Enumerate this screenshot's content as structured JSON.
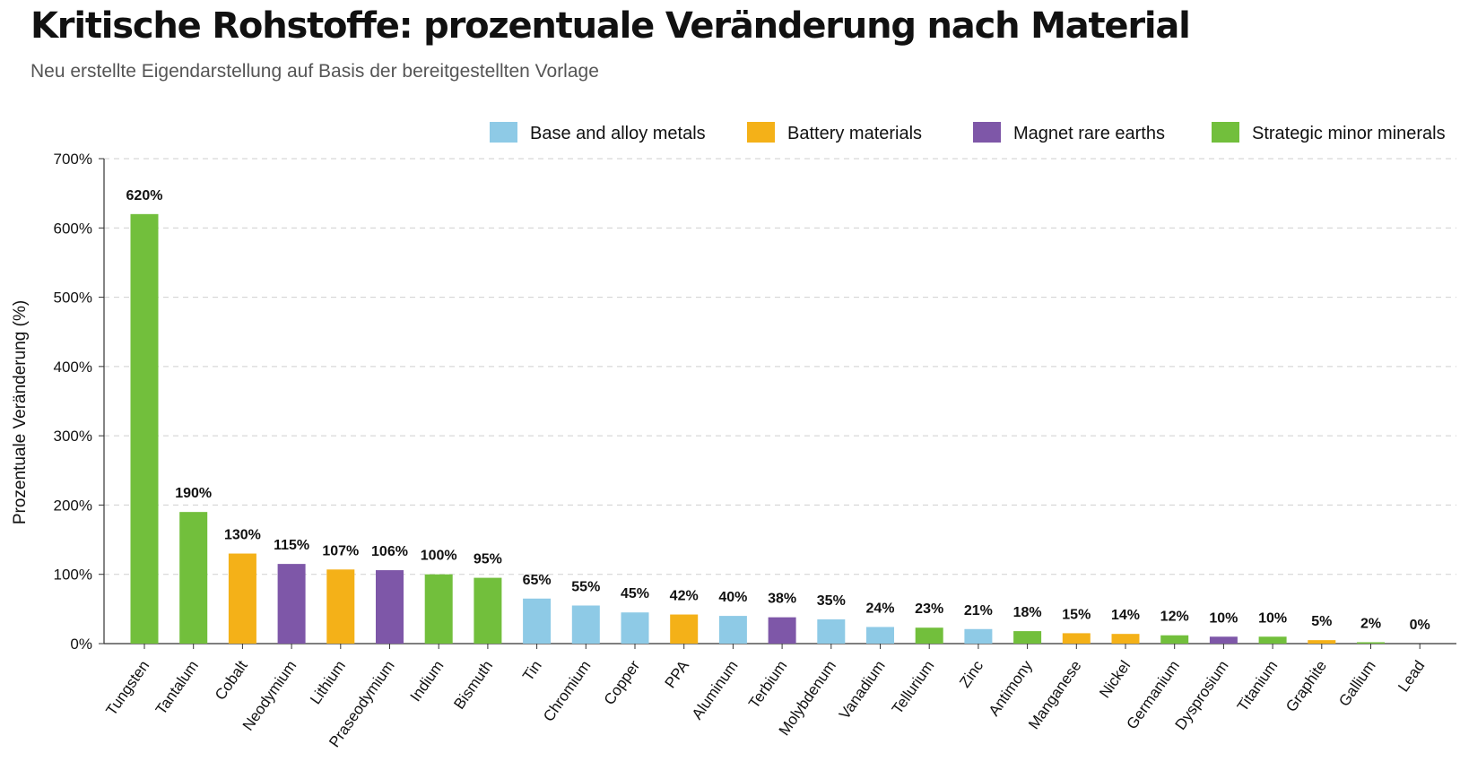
{
  "header": {
    "title": "Kritische Rohstoffe: prozentuale Veränderung nach Material",
    "subtitle": "Neu erstellte Eigendarstellung auf Basis der bereitgestellten Vorlage"
  },
  "chart_data": {
    "type": "bar",
    "title": "Kritische Rohstoffe: prozentuale Veränderung nach Material",
    "subtitle": "Neu erstellte Eigendarstellung auf Basis der bereitgestellten Vorlage",
    "xlabel": "",
    "ylabel": "Prozentuale Veränderung (%)",
    "ylim": [
      0,
      700
    ],
    "yticks": [
      0,
      100,
      200,
      300,
      400,
      500,
      600,
      700
    ],
    "ytick_labels": [
      "0%",
      "100%",
      "200%",
      "300%",
      "400%",
      "500%",
      "600%",
      "700%"
    ],
    "grid": "horizontal dashed",
    "legend_position": "top-right",
    "groups": [
      {
        "name": "Base and alloy metals",
        "color": "#8ecae6"
      },
      {
        "name": "Battery materials",
        "color": "#f4b118"
      },
      {
        "name": "Magnet rare earths",
        "color": "#7e57a8"
      },
      {
        "name": "Strategic minor minerals",
        "color": "#72bf3c"
      }
    ],
    "bars": [
      {
        "category": "Tungsten",
        "value": 620,
        "label": "620%",
        "group": 3
      },
      {
        "category": "Tantalum",
        "value": 190,
        "label": "190%",
        "group": 3
      },
      {
        "category": "Cobalt",
        "value": 130,
        "label": "130%",
        "group": 1
      },
      {
        "category": "Neodymium",
        "value": 115,
        "label": "115%",
        "group": 2
      },
      {
        "category": "Lithium",
        "value": 107,
        "label": "107%",
        "group": 1
      },
      {
        "category": "Praseodymium",
        "value": 106,
        "label": "106%",
        "group": 2
      },
      {
        "category": "Indium",
        "value": 100,
        "label": "100%",
        "group": 3
      },
      {
        "category": "Bismuth",
        "value": 95,
        "label": "95%",
        "group": 3
      },
      {
        "category": "Tin",
        "value": 65,
        "label": "65%",
        "group": 0
      },
      {
        "category": "Chromium",
        "value": 55,
        "label": "55%",
        "group": 0
      },
      {
        "category": "Copper",
        "value": 45,
        "label": "45%",
        "group": 0
      },
      {
        "category": "PPA",
        "value": 42,
        "label": "42%",
        "group": 1
      },
      {
        "category": "Aluminum",
        "value": 40,
        "label": "40%",
        "group": 0
      },
      {
        "category": "Terbium",
        "value": 38,
        "label": "38%",
        "group": 2
      },
      {
        "category": "Molybdenum",
        "value": 35,
        "label": "35%",
        "group": 0
      },
      {
        "category": "Vanadium",
        "value": 24,
        "label": "24%",
        "group": 0
      },
      {
        "category": "Tellurium",
        "value": 23,
        "label": "23%",
        "group": 3
      },
      {
        "category": "Zinc",
        "value": 21,
        "label": "21%",
        "group": 0
      },
      {
        "category": "Antimony",
        "value": 18,
        "label": "18%",
        "group": 3
      },
      {
        "category": "Manganese",
        "value": 15,
        "label": "15%",
        "group": 1
      },
      {
        "category": "Nickel",
        "value": 14,
        "label": "14%",
        "group": 1
      },
      {
        "category": "Germanium",
        "value": 12,
        "label": "12%",
        "group": 3
      },
      {
        "category": "Dysprosium",
        "value": 10,
        "label": "10%",
        "group": 2
      },
      {
        "category": "Titanium",
        "value": 10,
        "label": "10%",
        "group": 3
      },
      {
        "category": "Graphite",
        "value": 5,
        "label": "5%",
        "group": 1
      },
      {
        "category": "Gallium",
        "value": 2,
        "label": "2%",
        "group": 3
      },
      {
        "category": "Lead",
        "value": 0,
        "label": "0%",
        "group": 0
      }
    ]
  }
}
